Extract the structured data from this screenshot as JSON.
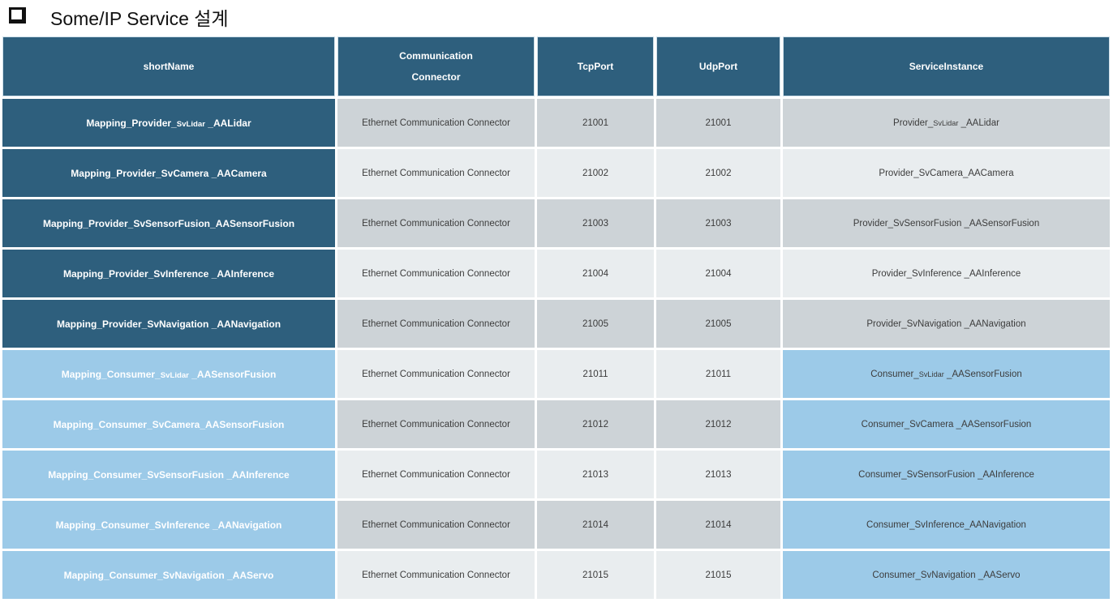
{
  "page": {
    "title": "Some/IP Service 설계",
    "bullet_icon": "square-outline"
  },
  "colors": {
    "pageBg": "#FFFFFF",
    "teal": "#2E5F7D",
    "blue": "#9CCAE8",
    "grayDark": "#CDD3D7",
    "grayLight": "#E9EDEF",
    "textDark": "#3C3C3C",
    "titleColor": "#111111"
  },
  "table": {
    "columns": [
      {
        "key": "shortName",
        "label": "shortName"
      },
      {
        "key": "connector",
        "label": "Communication\nConnector"
      },
      {
        "key": "tcpPort",
        "label": "TcpPort"
      },
      {
        "key": "udpPort",
        "label": "UdpPort"
      },
      {
        "key": "serviceInstance",
        "label": "ServiceInstance"
      }
    ],
    "rows": [
      {
        "group": "provider",
        "shortName": "Mapping_Provider_SvLidar _AALidar",
        "connector": "Ethernet Communication Connector",
        "tcpPort": "21001",
        "udpPort": "21001",
        "serviceInstance": "Provider_SvLidar _AALidar"
      },
      {
        "group": "provider",
        "shortName": "Mapping_Provider_SvCamera _AACamera",
        "connector": "Ethernet Communication Connector",
        "tcpPort": "21002",
        "udpPort": "21002",
        "serviceInstance": "Provider_SvCamera_AACamera"
      },
      {
        "group": "provider",
        "shortName": "Mapping_Provider_SvSensorFusion_AASensorFusion",
        "connector": "Ethernet Communication Connector",
        "tcpPort": "21003",
        "udpPort": "21003",
        "serviceInstance": "Provider_SvSensorFusion _AASensorFusion"
      },
      {
        "group": "provider",
        "shortName": "Mapping_Provider_SvInference _AAInference",
        "connector": "Ethernet Communication Connector",
        "tcpPort": "21004",
        "udpPort": "21004",
        "serviceInstance": "Provider_SvInference _AAInference"
      },
      {
        "group": "provider",
        "shortName": "Mapping_Provider_SvNavigation _AANavigation",
        "connector": "Ethernet Communication Connector",
        "tcpPort": "21005",
        "udpPort": "21005",
        "serviceInstance": "Provider_SvNavigation _AANavigation"
      },
      {
        "group": "consumer",
        "shortName": "Mapping_Consumer_SvLidar _AASensorFusion",
        "connector": "Ethernet Communication Connector",
        "tcpPort": "21011",
        "udpPort": "21011",
        "serviceInstance": "Consumer_SvLidar _AASensorFusion"
      },
      {
        "group": "consumer",
        "shortName": "Mapping_Consumer_SvCamera_AASensorFusion",
        "connector": "Ethernet Communication Connector",
        "tcpPort": "21012",
        "udpPort": "21012",
        "serviceInstance": "Consumer_SvCamera _AASensorFusion"
      },
      {
        "group": "consumer",
        "shortName": "Mapping_Consumer_SvSensorFusion _AAInference",
        "connector": "Ethernet Communication Connector",
        "tcpPort": "21013",
        "udpPort": "21013",
        "serviceInstance": "Consumer_SvSensorFusion _AAInference"
      },
      {
        "group": "consumer",
        "shortName": "Mapping_Consumer_SvInference _AANavigation",
        "connector": "Ethernet Communication Connector",
        "tcpPort": "21014",
        "udpPort": "21014",
        "serviceInstance": "Consumer_SvInference_AANavigation"
      },
      {
        "group": "consumer",
        "shortName": "Mapping_Consumer_SvNavigation _AAServo",
        "connector": "Ethernet Communication Connector",
        "tcpPort": "21015",
        "udpPort": "21015",
        "serviceInstance": "Consumer_SvNavigation _AAServo"
      }
    ]
  }
}
